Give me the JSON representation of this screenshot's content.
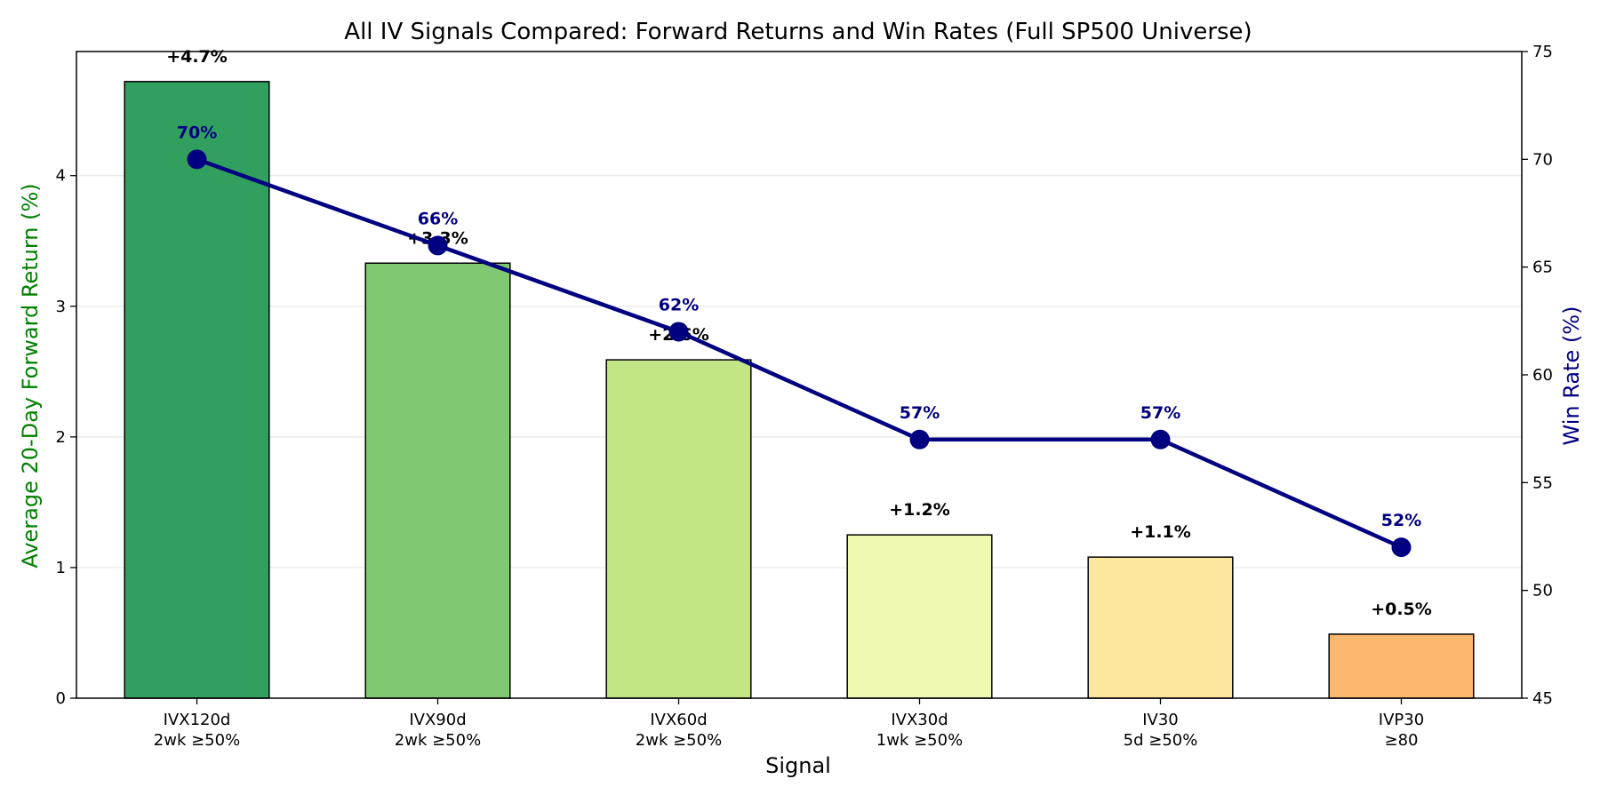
{
  "chart_data": {
    "type": "bar",
    "title": "All IV Signals Compared: Forward Returns and Win Rates (Full SP500 Universe)",
    "xlabel": "Signal",
    "ylabel": "Average 20-Day Forward Return (%)",
    "ylabel_right": "Win Rate (%)",
    "categories": [
      [
        "IVX120d",
        "2wk ≥50%"
      ],
      [
        "IVX90d",
        "2wk ≥50%"
      ],
      [
        "IVX60d",
        "2wk ≥50%"
      ],
      [
        "IVX30d",
        "1wk ≥50%"
      ],
      [
        "IV30",
        "5d ≥50%"
      ],
      [
        "IVP30",
        "≥80"
      ]
    ],
    "ylim": [
      0,
      4.95
    ],
    "ylim_right": [
      45,
      75
    ],
    "yticks": [
      0,
      1,
      2,
      3,
      4
    ],
    "yticks_right": [
      45,
      50,
      55,
      60,
      65,
      70,
      75
    ],
    "grid": true,
    "series": [
      {
        "axis": "left",
        "type": "bar",
        "values": [
          4.72,
          3.33,
          2.59,
          1.25,
          1.08,
          0.49
        ],
        "labels": [
          "+4.7%",
          "+3.3%",
          "+2.6%",
          "+1.2%",
          "+1.1%",
          "+0.5%"
        ],
        "colors": [
          "#31a05e",
          "#80c872",
          "#c2e585",
          "#f1f8b0",
          "#fde79c",
          "#fdb870"
        ]
      },
      {
        "axis": "right",
        "type": "line",
        "values": [
          70,
          66,
          62,
          57,
          57,
          52
        ],
        "labels": [
          "70%",
          "66%",
          "62%",
          "57%",
          "57%",
          "52%"
        ],
        "color": "#000080"
      }
    ],
    "colors": {
      "left_axis_label": "#008000",
      "right_axis_label": "#000080",
      "bar_edge": "#000000",
      "grid": "#e6e6e6"
    }
  }
}
